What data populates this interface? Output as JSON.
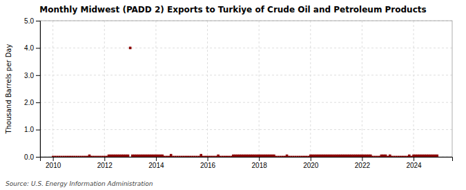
{
  "chart_data": {
    "type": "scatter",
    "title": "Monthly Midwest (PADD 2) Exports to Turkiye of Crude Oil and Petroleum Products",
    "ylabel": "Thousand Barrels per Day",
    "annotations": [
      "Source: U.S. Energy Information Administration"
    ],
    "xlim": [
      2009.5,
      2025.5
    ],
    "xticks": [
      2010,
      2012,
      2014,
      2016,
      2018,
      2020,
      2022,
      2024
    ],
    "ylim": [
      0.0,
      5.0
    ],
    "yticks": [
      {
        "value": 0.0,
        "label": "0.0"
      },
      {
        "value": 1.0,
        "label": "1.0"
      },
      {
        "value": 2.0,
        "label": "2.0"
      },
      {
        "value": 3.0,
        "label": "3.0"
      },
      {
        "value": 4.0,
        "label": "4.0"
      },
      {
        "value": 5.0,
        "label": "5.0"
      }
    ],
    "grid": true,
    "series": [
      {
        "color": "#8B0000",
        "marker": "square",
        "x": [
          2010.0,
          2010.083,
          2010.167,
          2010.25,
          2010.333,
          2010.417,
          2010.5,
          2010.583,
          2010.667,
          2010.75,
          2010.833,
          2010.917,
          2011.0,
          2011.083,
          2011.167,
          2011.25,
          2011.333,
          2011.417,
          2011.5,
          2011.583,
          2011.667,
          2011.75,
          2011.833,
          2011.917,
          2012.0,
          2012.083,
          2012.167,
          2012.25,
          2012.333,
          2012.417,
          2012.5,
          2012.583,
          2012.667,
          2012.75,
          2012.833,
          2012.917,
          2013.0,
          2013.083,
          2013.167,
          2013.25,
          2013.333,
          2013.417,
          2013.5,
          2013.583,
          2013.667,
          2013.75,
          2013.833,
          2013.917,
          2014.0,
          2014.083,
          2014.167,
          2014.25,
          2014.333,
          2014.417,
          2014.5,
          2014.583,
          2014.667,
          2014.75,
          2014.833,
          2014.917,
          2015.0,
          2015.083,
          2015.167,
          2015.25,
          2015.333,
          2015.417,
          2015.5,
          2015.583,
          2015.667,
          2015.75,
          2015.833,
          2015.917,
          2016.0,
          2016.083,
          2016.167,
          2016.25,
          2016.333,
          2016.417,
          2016.5,
          2016.583,
          2016.667,
          2016.75,
          2016.833,
          2016.917,
          2017.0,
          2017.083,
          2017.167,
          2017.25,
          2017.333,
          2017.417,
          2017.5,
          2017.583,
          2017.667,
          2017.75,
          2017.833,
          2017.917,
          2018.0,
          2018.083,
          2018.167,
          2018.25,
          2018.333,
          2018.417,
          2018.5,
          2018.583,
          2018.667,
          2018.75,
          2018.833,
          2018.917,
          2019.0,
          2019.083,
          2019.167,
          2019.25,
          2019.333,
          2019.417,
          2019.5,
          2019.583,
          2019.667,
          2019.75,
          2019.833,
          2019.917,
          2020.0,
          2020.083,
          2020.167,
          2020.25,
          2020.333,
          2020.417,
          2020.5,
          2020.583,
          2020.667,
          2020.75,
          2020.833,
          2020.917,
          2021.0,
          2021.083,
          2021.167,
          2021.25,
          2021.333,
          2021.417,
          2021.5,
          2021.583,
          2021.667,
          2021.75,
          2021.833,
          2021.917,
          2022.0,
          2022.083,
          2022.167,
          2022.25,
          2022.333,
          2022.417,
          2022.5,
          2022.583,
          2022.667,
          2022.75,
          2022.833,
          2022.917,
          2023.0,
          2023.083,
          2023.167,
          2023.25,
          2023.333,
          2023.417,
          2023.5,
          2023.583,
          2023.667,
          2023.75,
          2023.833,
          2023.917,
          2024.0,
          2024.083,
          2024.167,
          2024.25,
          2024.333,
          2024.417,
          2024.5,
          2024.583,
          2024.667,
          2024.75,
          2024.833,
          2024.917
        ],
        "values": [
          0.0,
          0.0,
          0.0,
          0.0,
          0.0,
          0.0,
          0.0,
          0.0,
          0.0,
          0.0,
          0.0,
          0.0,
          0.0,
          0.0,
          0.0,
          0.0,
          0.0,
          0.0,
          0.0,
          0.0,
          0.0,
          0.0,
          0.0,
          0.0,
          0.0,
          0.0,
          0.0,
          0.0,
          0.0,
          0.0,
          0.0,
          0.0,
          0.0,
          0.0,
          0.0,
          0.0,
          4.0,
          0.0,
          0.0,
          0.0,
          0.0,
          0.0,
          0.0,
          0.0,
          0.0,
          0.0,
          0.0,
          0.0,
          0.0,
          0.0,
          0.0,
          0.0,
          0.0,
          0.0,
          0.0,
          0.0,
          0.0,
          0.0,
          0.0,
          0.0,
          0.0,
          0.0,
          0.0,
          0.0,
          0.0,
          0.0,
          0.0,
          0.0,
          0.0,
          0.0,
          0.0,
          0.0,
          0.0,
          0.0,
          0.0,
          0.0,
          0.0,
          0.0,
          0.0,
          0.0,
          0.0,
          0.0,
          0.0,
          0.0,
          0.0,
          0.0,
          0.0,
          0.0,
          0.0,
          0.0,
          0.0,
          0.0,
          0.0,
          0.0,
          0.0,
          0.0,
          0.0,
          0.0,
          0.0,
          0.0,
          0.0,
          0.0,
          0.0,
          0.0,
          0.0,
          0.0,
          0.0,
          0.0,
          0.0,
          0.0,
          0.0,
          0.0,
          0.0,
          0.0,
          0.0,
          0.0,
          0.0,
          0.0,
          0.0,
          0.0,
          0.0,
          0.0,
          0.0,
          0.0,
          0.0,
          0.0,
          0.0,
          0.0,
          0.0,
          0.0,
          0.0,
          0.0,
          0.0,
          0.0,
          0.0,
          0.0,
          0.0,
          0.0,
          0.0,
          0.0,
          0.0,
          0.0,
          0.0,
          0.0,
          0.0,
          0.0,
          0.0,
          0.0,
          0.0,
          0.0,
          0.0,
          0.0,
          0.0,
          0.0,
          0.0,
          0.0,
          0.0,
          0.0,
          0.0,
          0.0,
          0.0,
          0.0,
          0.0,
          0.0,
          0.0,
          0.0,
          0.0,
          0.0,
          0.0,
          0.0,
          0.0,
          0.0,
          0.0,
          0.0,
          0.0,
          0.0,
          0.0,
          0.0,
          0.0,
          0.0
        ]
      },
      {
        "color": "#8B0000",
        "marker": "square",
        "x": [
          2011.417,
          2012.167,
          2012.25,
          2012.333,
          2012.417,
          2012.5,
          2012.583,
          2012.667,
          2012.75,
          2012.833,
          2012.917,
          2013.0,
          2013.083,
          2013.167,
          2013.25,
          2013.333,
          2013.417,
          2013.5,
          2013.583,
          2013.667,
          2013.75,
          2013.833,
          2013.917,
          2014.0,
          2014.083,
          2014.167,
          2014.25,
          2014.583,
          2015.75,
          2016.417,
          2017.0,
          2017.083,
          2017.167,
          2017.25,
          2017.333,
          2017.417,
          2017.5,
          2017.583,
          2017.667,
          2017.75,
          2017.833,
          2017.917,
          2018.0,
          2018.083,
          2018.167,
          2018.25,
          2018.333,
          2018.417,
          2018.5,
          2018.583,
          2019.083,
          2020.0,
          2020.083,
          2020.167,
          2020.25,
          2020.333,
          2020.417,
          2020.5,
          2020.583,
          2020.667,
          2020.75,
          2020.833,
          2020.917,
          2021.0,
          2021.083,
          2021.167,
          2021.25,
          2021.333,
          2021.417,
          2021.5,
          2021.583,
          2021.667,
          2021.75,
          2021.833,
          2021.917,
          2022.0,
          2022.083,
          2022.167,
          2022.25,
          2022.333,
          2022.75,
          2022.833,
          2022.917,
          2023.083,
          2023.833,
          2024.0,
          2024.083,
          2024.167,
          2024.25,
          2024.333,
          2024.417,
          2024.5,
          2024.583,
          2024.667,
          2024.75,
          2024.833,
          2024.917
        ],
        "values": [
          0.04,
          0.04,
          0.04,
          0.04,
          0.04,
          0.04,
          0.04,
          0.04,
          0.04,
          0.04,
          0.04,
          4.0,
          0.04,
          0.04,
          0.04,
          0.04,
          0.04,
          0.04,
          0.04,
          0.04,
          0.04,
          0.04,
          0.04,
          0.04,
          0.04,
          0.04,
          0.04,
          0.06,
          0.06,
          0.04,
          0.04,
          0.04,
          0.04,
          0.04,
          0.04,
          0.04,
          0.04,
          0.04,
          0.04,
          0.04,
          0.04,
          0.04,
          0.04,
          0.04,
          0.04,
          0.04,
          0.04,
          0.04,
          0.04,
          0.04,
          0.04,
          0.04,
          0.04,
          0.04,
          0.04,
          0.04,
          0.04,
          0.04,
          0.04,
          0.04,
          0.04,
          0.04,
          0.04,
          0.04,
          0.04,
          0.04,
          0.04,
          0.04,
          0.04,
          0.04,
          0.04,
          0.04,
          0.04,
          0.04,
          0.04,
          0.04,
          0.04,
          0.04,
          0.04,
          0.04,
          0.04,
          0.04,
          0.04,
          0.04,
          0.04,
          0.04,
          0.04,
          0.04,
          0.04,
          0.04,
          0.04,
          0.04,
          0.04,
          0.04,
          0.04,
          0.04,
          0.04
        ]
      }
    ]
  }
}
